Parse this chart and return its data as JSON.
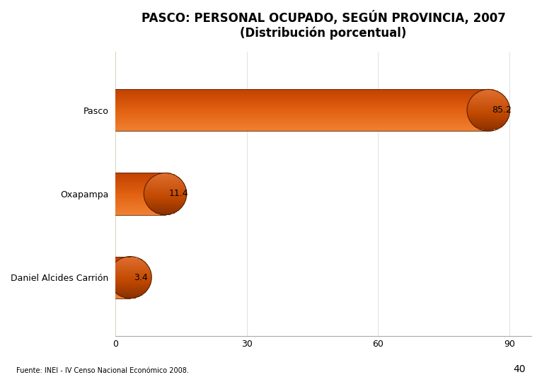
{
  "title_line1": "PASCO: PERSONAL OCUPADO, SEGÚN PROVINCIA, 2007",
  "title_line2": "(Distribución porcentual)",
  "categories": [
    "Daniel Alcides Carrión",
    "Oxapampa",
    "Pasco"
  ],
  "values": [
    3.4,
    11.4,
    85.2
  ],
  "bar_color_top": "#F08030",
  "bar_color_mid": "#E06010",
  "bar_color_bot": "#C04000",
  "bar_color_cap_dark": "#8B3000",
  "bar_color_cap_mid": "#C04800",
  "bar_color_cap_light": "#E07030",
  "xlim": [
    0,
    95
  ],
  "xticks": [
    0,
    30,
    60,
    90
  ],
  "wall_color": "#F5F5C8",
  "footnote": "Fuente: INEI - IV Censo Nacional Económico 2008.",
  "page_number": "40",
  "background_color": "#FFFFFF",
  "title_fontsize": 12,
  "label_fontsize": 9,
  "tick_fontsize": 9,
  "value_fontsize": 9
}
